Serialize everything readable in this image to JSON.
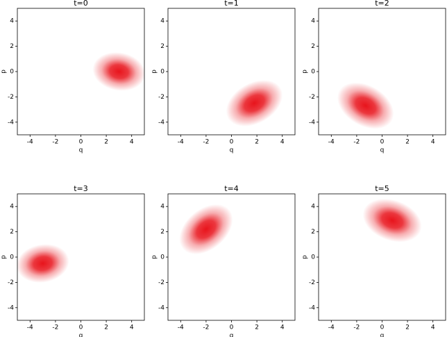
{
  "chart_data": [
    {
      "type": "density",
      "title": "t=0",
      "xlabel": "q",
      "ylabel": "p",
      "xlim": [
        -5,
        5
      ],
      "ylim": [
        -5,
        5
      ],
      "xticks": [
        -4,
        -2,
        0,
        2,
        4
      ],
      "yticks": [
        -4,
        -2,
        0,
        2,
        4
      ],
      "center_q": 3,
      "center_p": 0,
      "spread_q": 0.75,
      "spread_p": 1.05,
      "angle": 80,
      "color": "#e8141c"
    },
    {
      "type": "density",
      "title": "t=1",
      "xlabel": "q",
      "ylabel": "p",
      "xlim": [
        -5,
        5
      ],
      "ylim": [
        -5,
        5
      ],
      "xticks": [
        -4,
        -2,
        0,
        2,
        4
      ],
      "yticks": [
        -4,
        -2,
        0,
        2,
        4
      ],
      "center_q": 1.8,
      "center_p": -2.5,
      "spread_q": 1.2,
      "spread_p": 0.8,
      "angle": 30,
      "color": "#e8141c"
    },
    {
      "type": "density",
      "title": "t=2",
      "xlabel": "q",
      "ylabel": "p",
      "xlim": [
        -5,
        5
      ],
      "ylim": [
        -5,
        5
      ],
      "xticks": [
        -4,
        -2,
        0,
        2,
        4
      ],
      "yticks": [
        -4,
        -2,
        0,
        2,
        4
      ],
      "center_q": -1.3,
      "center_p": -2.7,
      "spread_q": 1.2,
      "spread_p": 0.8,
      "angle": -30,
      "color": "#e8141c"
    },
    {
      "type": "density",
      "title": "t=3",
      "xlabel": "q",
      "ylabel": "p",
      "xlim": [
        -5,
        5
      ],
      "ylim": [
        -5,
        5
      ],
      "xticks": [
        -4,
        -2,
        0,
        2,
        4
      ],
      "yticks": [
        -4,
        -2,
        0,
        2,
        4
      ],
      "center_q": -3,
      "center_p": -0.5,
      "spread_q": 0.75,
      "spread_p": 1.05,
      "angle": 100,
      "color": "#e8141c"
    },
    {
      "type": "density",
      "title": "t=4",
      "xlabel": "q",
      "ylabel": "p",
      "xlim": [
        -5,
        5
      ],
      "ylim": [
        -5,
        5
      ],
      "xticks": [
        -4,
        -2,
        0,
        2,
        4
      ],
      "yticks": [
        -4,
        -2,
        0,
        2,
        4
      ],
      "center_q": -2,
      "center_p": 2.2,
      "spread_q": 1.2,
      "spread_p": 0.8,
      "angle": 40,
      "color": "#e8141c"
    },
    {
      "type": "density",
      "title": "t=5",
      "xlabel": "q",
      "ylabel": "p",
      "xlim": [
        -5,
        5
      ],
      "ylim": [
        -5,
        5
      ],
      "xticks": [
        -4,
        -2,
        0,
        2,
        4
      ],
      "yticks": [
        -4,
        -2,
        0,
        2,
        4
      ],
      "center_q": 0.8,
      "center_p": 2.9,
      "spread_q": 1.2,
      "spread_p": 0.8,
      "angle": -20,
      "color": "#e8141c"
    }
  ]
}
